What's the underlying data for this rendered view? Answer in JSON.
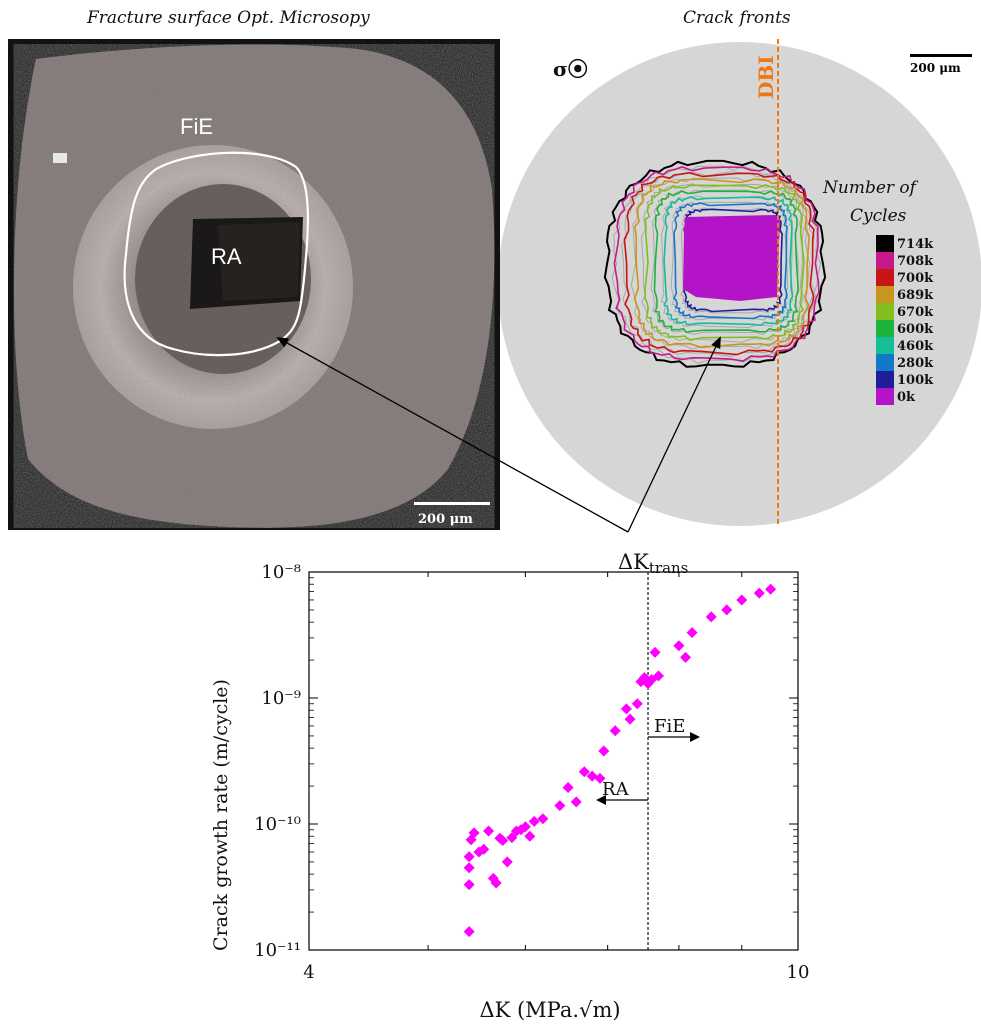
{
  "micrograph": {
    "title": "Fracture surface Opt. Microsopy",
    "label_fie": "FiE",
    "label_ra": "RA",
    "scale_bar": "200 μm"
  },
  "crack_fronts": {
    "title": "Crack fronts",
    "stress_symbol": "σ⦿",
    "dbi_label": "DBI",
    "scale_bar": "200 μm",
    "legend_title_line1": "Number of",
    "legend_title_line2": "Cycles",
    "legend": [
      {
        "label": "714k",
        "color": "#000000"
      },
      {
        "label": "708k",
        "color": "#c8198c"
      },
      {
        "label": "700k",
        "color": "#c81414"
      },
      {
        "label": "689k",
        "color": "#c8961e"
      },
      {
        "label": "670k",
        "color": "#82be1e"
      },
      {
        "label": "600k",
        "color": "#1eb43c"
      },
      {
        "label": "460k",
        "color": "#14be96"
      },
      {
        "label": "280k",
        "color": "#1478c8"
      },
      {
        "label": "100k",
        "color": "#1e1e9b"
      },
      {
        "label": "0k",
        "color": "#b414c8"
      }
    ]
  },
  "chart_data": {
    "type": "scatter",
    "title": "",
    "xlabel": "ΔK (MPa.√m)",
    "ylabel": "Crack growth rate (m/cycle)",
    "x_scale": "log",
    "y_scale": "log",
    "xlim": [
      4,
      10
    ],
    "ylim": [
      1e-11,
      1e-08
    ],
    "x_tick_labels": [
      "4",
      "10"
    ],
    "y_tick_labels": [
      "10⁻¹¹",
      "10⁻¹⁰",
      "10⁻⁹",
      "10⁻⁸"
    ],
    "marker_color": "#ff00ff",
    "transition_label": "ΔK",
    "transition_label_sub": "trans",
    "transition_x": 7.55,
    "annotation_fie": "FiE",
    "annotation_ra": "RA",
    "points": [
      [
        5.4,
        1.4e-11
      ],
      [
        5.4,
        3.3e-11
      ],
      [
        5.4,
        4.5e-11
      ],
      [
        5.4,
        5.5e-11
      ],
      [
        5.42,
        7.5e-11
      ],
      [
        5.45,
        8.5e-11
      ],
      [
        5.5,
        6e-11
      ],
      [
        5.55,
        6.3e-11
      ],
      [
        5.6,
        8.8e-11
      ],
      [
        5.65,
        3.7e-11
      ],
      [
        5.68,
        3.4e-11
      ],
      [
        5.72,
        7.7e-11
      ],
      [
        5.75,
        7.4e-11
      ],
      [
        5.8,
        5e-11
      ],
      [
        5.85,
        7.8e-11
      ],
      [
        5.9,
        8.8e-11
      ],
      [
        5.95,
        9e-11
      ],
      [
        6.0,
        9.5e-11
      ],
      [
        6.05,
        8e-11
      ],
      [
        6.1,
        1.05e-10
      ],
      [
        6.2,
        1.1e-10
      ],
      [
        6.4,
        1.4e-10
      ],
      [
        6.5,
        1.95e-10
      ],
      [
        6.6,
        1.5e-10
      ],
      [
        6.7,
        2.6e-10
      ],
      [
        6.8,
        2.4e-10
      ],
      [
        6.9,
        2.3e-10
      ],
      [
        6.95,
        3.8e-10
      ],
      [
        7.1,
        5.5e-10
      ],
      [
        7.25,
        8.2e-10
      ],
      [
        7.3,
        6.8e-10
      ],
      [
        7.4,
        9e-10
      ],
      [
        7.45,
        1.35e-09
      ],
      [
        7.5,
        1.45e-09
      ],
      [
        7.55,
        1.3e-09
      ],
      [
        7.6,
        1.4e-09
      ],
      [
        7.65,
        2.3e-09
      ],
      [
        7.7,
        1.5e-09
      ],
      [
        8.0,
        2.6e-09
      ],
      [
        8.1,
        2.1e-09
      ],
      [
        8.2,
        3.3e-09
      ],
      [
        8.5,
        4.4e-09
      ],
      [
        8.75,
        5e-09
      ],
      [
        9.0,
        6e-09
      ],
      [
        9.3,
        6.8e-09
      ],
      [
        9.5,
        7.3e-09
      ]
    ]
  }
}
